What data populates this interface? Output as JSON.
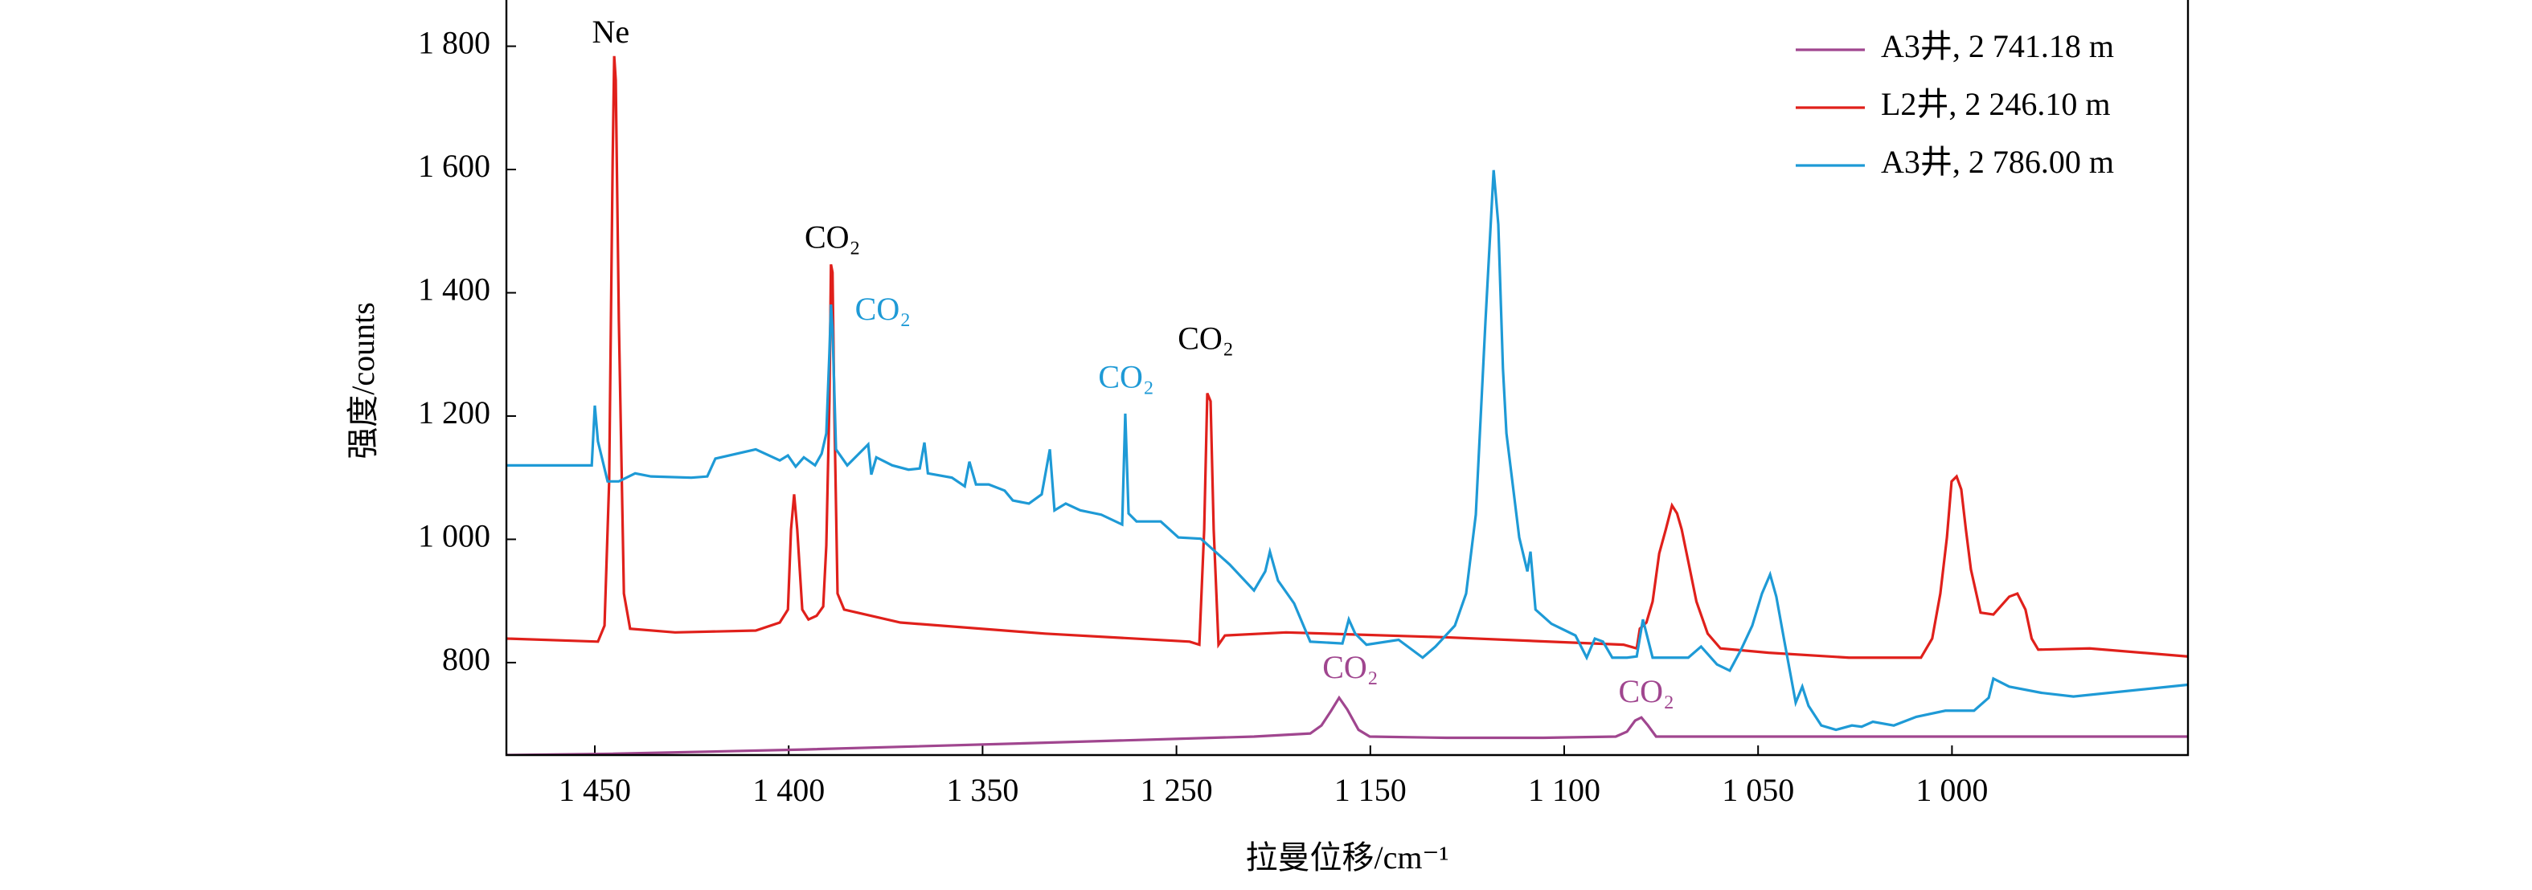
{
  "chart_data": {
    "type": "line",
    "x_label": "拉曼位移/cm⁻¹",
    "y_label": "强度/counts",
    "xlim": [
      1473,
      939
    ],
    "ylim": [
      650,
      1875
    ],
    "xticks": [
      {
        "value": 1450,
        "label": "1 450"
      },
      {
        "value": 1400,
        "label": "1 400"
      },
      {
        "value": 1350,
        "label": "1 350"
      },
      {
        "value": 1250,
        "label": "1 250"
      },
      {
        "value": 1150,
        "label": "1 150"
      },
      {
        "value": 1100,
        "label": "1 100"
      },
      {
        "value": 1050,
        "label": "1 050"
      },
      {
        "value": 1000,
        "label": "1 000"
      }
    ],
    "yticks": [
      800,
      {
        "value": 1000,
        "label": "1 000"
      },
      {
        "value": 1200,
        "label": "1 200"
      },
      {
        "value": 1400,
        "label": "1 400"
      },
      {
        "value": 1600,
        "label": "1 600"
      },
      {
        "value": 1800,
        "label": "1 800"
      }
    ],
    "legend": "upper right",
    "series": [
      {
        "name": "A3井, 2 741.18 m",
        "color": "#a0468f",
        "x": [
          1473,
          1445.9,
          1396.1,
          1317.8,
          1210.0,
          1181.0,
          1175.2,
          1170.2,
          1166.1,
          1161.9,
          1156.1,
          1150.3,
          1130.3,
          1105.4,
          1086.7,
          1083.8,
          1081.7,
          1080.1,
          1078.4,
          1076.3,
          1072.2,
          939.1
        ],
        "values": [
          650,
          652,
          659,
          670,
          680,
          685,
          698,
          722,
          743,
          724,
          691,
          680,
          678,
          678,
          680,
          688,
          706,
          711,
          698,
          680,
          680,
          680
        ]
      },
      {
        "name": "L2井, 2 246.10 m",
        "color": "#e0201b",
        "x": [
          1473,
          1449.2,
          1447.5,
          1446.3,
          1445.4,
          1445.0,
          1444.6,
          1443.8,
          1442.5,
          1440.9,
          1429.3,
          1408.5,
          1402.3,
          1400.2,
          1399.4,
          1398.6,
          1397.8,
          1396.5,
          1394.9,
          1392.8,
          1391.1,
          1390.3,
          1389.5,
          1389.1,
          1388.7,
          1388.2,
          1387.4,
          1385.7,
          1371.2,
          1317.8,
          1243.2,
          1238.2,
          1235.7,
          1234.1,
          1232.4,
          1230.8,
          1228.3,
          1225.0,
          1193.5,
          1130.3,
          1084.7,
          1081.3,
          1080.5,
          1078.8,
          1077.2,
          1075.5,
          1073.8,
          1072.2,
          1070.9,
          1069.7,
          1068.0,
          1065.9,
          1063.0,
          1059.7,
          1047.3,
          1026.6,
          1008.0,
          1005.1,
          1003.0,
          1001.3,
          1000.1,
          998.8,
          997.6,
          996.4,
          995.1,
          992.6,
          989.3,
          985.2,
          983.1,
          981.0,
          979.4,
          977.7,
          964.4,
          939.1
        ],
        "values": [
          839,
          834,
          860,
          1094,
          1615,
          1784,
          1745,
          1355,
          912,
          855,
          849,
          852,
          865,
          886,
          1016,
          1073,
          1016,
          886,
          870,
          876,
          891,
          990,
          1224,
          1446,
          1433,
          1198,
          912,
          886,
          865,
          847,
          834,
          829,
          1016,
          1237,
          1224,
          1016,
          829,
          844,
          849,
          841,
          829,
          823,
          855,
          865,
          899,
          977,
          1016,
          1055,
          1042,
          1016,
          964,
          899,
          847,
          823,
          816,
          808,
          808,
          839,
          912,
          1003,
          1094,
          1102,
          1081,
          1016,
          951,
          881,
          878,
          907,
          912,
          886,
          839,
          821,
          823,
          810
        ]
      },
      {
        "name": "A3井, 2 786.00 m",
        "color": "#1e9ad6",
        "x": [
          1473,
          1450.8,
          1450.0,
          1449.2,
          1446.7,
          1443.8,
          1439.6,
          1435.5,
          1425.1,
          1421.0,
          1418.9,
          1408.5,
          1402.3,
          1400.2,
          1398.2,
          1396.1,
          1393.2,
          1391.5,
          1390.3,
          1389.5,
          1389.1,
          1388.7,
          1387.8,
          1384.9,
          1379.5,
          1378.7,
          1377.4,
          1373.3,
          1369.1,
          1366.2,
          1365.0,
          1364.1,
          1357.9,
          1354.6,
          1353.4,
          1351.7,
          1346.8,
          1338.6,
          1334.4,
          1326.1,
          1319.5,
          1315.3,
          1312.9,
          1307.1,
          1299.6,
          1288.8,
          1278.0,
          1276.4,
          1274.7,
          1270.6,
          1258.1,
          1249.0,
          1237.4,
          1222.5,
          1210.0,
          1204.2,
          1201.8,
          1197.6,
          1189.3,
          1181.0,
          1164.4,
          1161.1,
          1157.8,
          1152.0,
          1142.7,
          1136.5,
          1133.2,
          1128.2,
          1125.3,
          1122.8,
          1120.3,
          1118.2,
          1117.0,
          1115.8,
          1114.9,
          1111.6,
          1109.5,
          1108.7,
          1107.4,
          1103.3,
          1097.1,
          1094.2,
          1092.1,
          1090.0,
          1087.6,
          1083.8,
          1081.3,
          1079.7,
          1077.2,
          1068.0,
          1064.7,
          1060.6,
          1057.3,
          1054.4,
          1051.5,
          1049.0,
          1046.9,
          1045.3,
          1043.2,
          1040.3,
          1038.6,
          1037.0,
          1033.7,
          1029.9,
          1025.8,
          1023.3,
          1020.4,
          1015.0,
          1009.2,
          1001.7,
          994.3,
          990.5,
          989.3,
          985.2,
          976.9,
          968.6,
          939.1
        ],
        "values": [
          1120,
          1120,
          1217,
          1159,
          1094,
          1094,
          1107,
          1102,
          1100,
          1102,
          1131,
          1146,
          1128,
          1136,
          1118,
          1133,
          1120,
          1139,
          1172,
          1303,
          1381,
          1342,
          1146,
          1120,
          1154,
          1105,
          1133,
          1120,
          1113,
          1115,
          1157,
          1107,
          1100,
          1086,
          1126,
          1089,
          1089,
          1079,
          1063,
          1058,
          1073,
          1146,
          1047,
          1058,
          1047,
          1040,
          1024,
          1204,
          1042,
          1029,
          1029,
          1003,
          1001,
          959,
          917,
          948,
          980,
          933,
          896,
          834,
          831,
          870,
          847,
          829,
          837,
          808,
          826,
          860,
          912,
          1040,
          1355,
          1599,
          1511,
          1277,
          1172,
          1003,
          948,
          980,
          886,
          863,
          844,
          808,
          839,
          834,
          808,
          808,
          810,
          870,
          808,
          808,
          826,
          797,
          787,
          821,
          860,
          912,
          943,
          907,
          834,
          735,
          761,
          730,
          698,
          691,
          698,
          696,
          704,
          698,
          712,
          722,
          722,
          743,
          774,
          761,
          751,
          745,
          764
        ]
      }
    ],
    "annotations": [
      {
        "text": "Ne",
        "x": 1445.9,
        "y": 1818,
        "color": "#000000"
      },
      {
        "text": "CO₂",
        "x": 1388.7,
        "y": 1485,
        "color": "#000000"
      },
      {
        "text": "CO₂",
        "x": 1375.7,
        "y": 1368,
        "color": "#1e9ad6"
      },
      {
        "text": "CO₂",
        "x": 1275.9,
        "y": 1258,
        "color": "#1e9ad6"
      },
      {
        "text": "CO₂",
        "x": 1234.9,
        "y": 1321,
        "color": "#000000"
      },
      {
        "text": "CO₂",
        "x": 1160.3,
        "y": 787,
        "color": "#a0468f"
      },
      {
        "text": "CO₂",
        "x": 1078.8,
        "y": 748,
        "color": "#a0468f"
      }
    ]
  }
}
